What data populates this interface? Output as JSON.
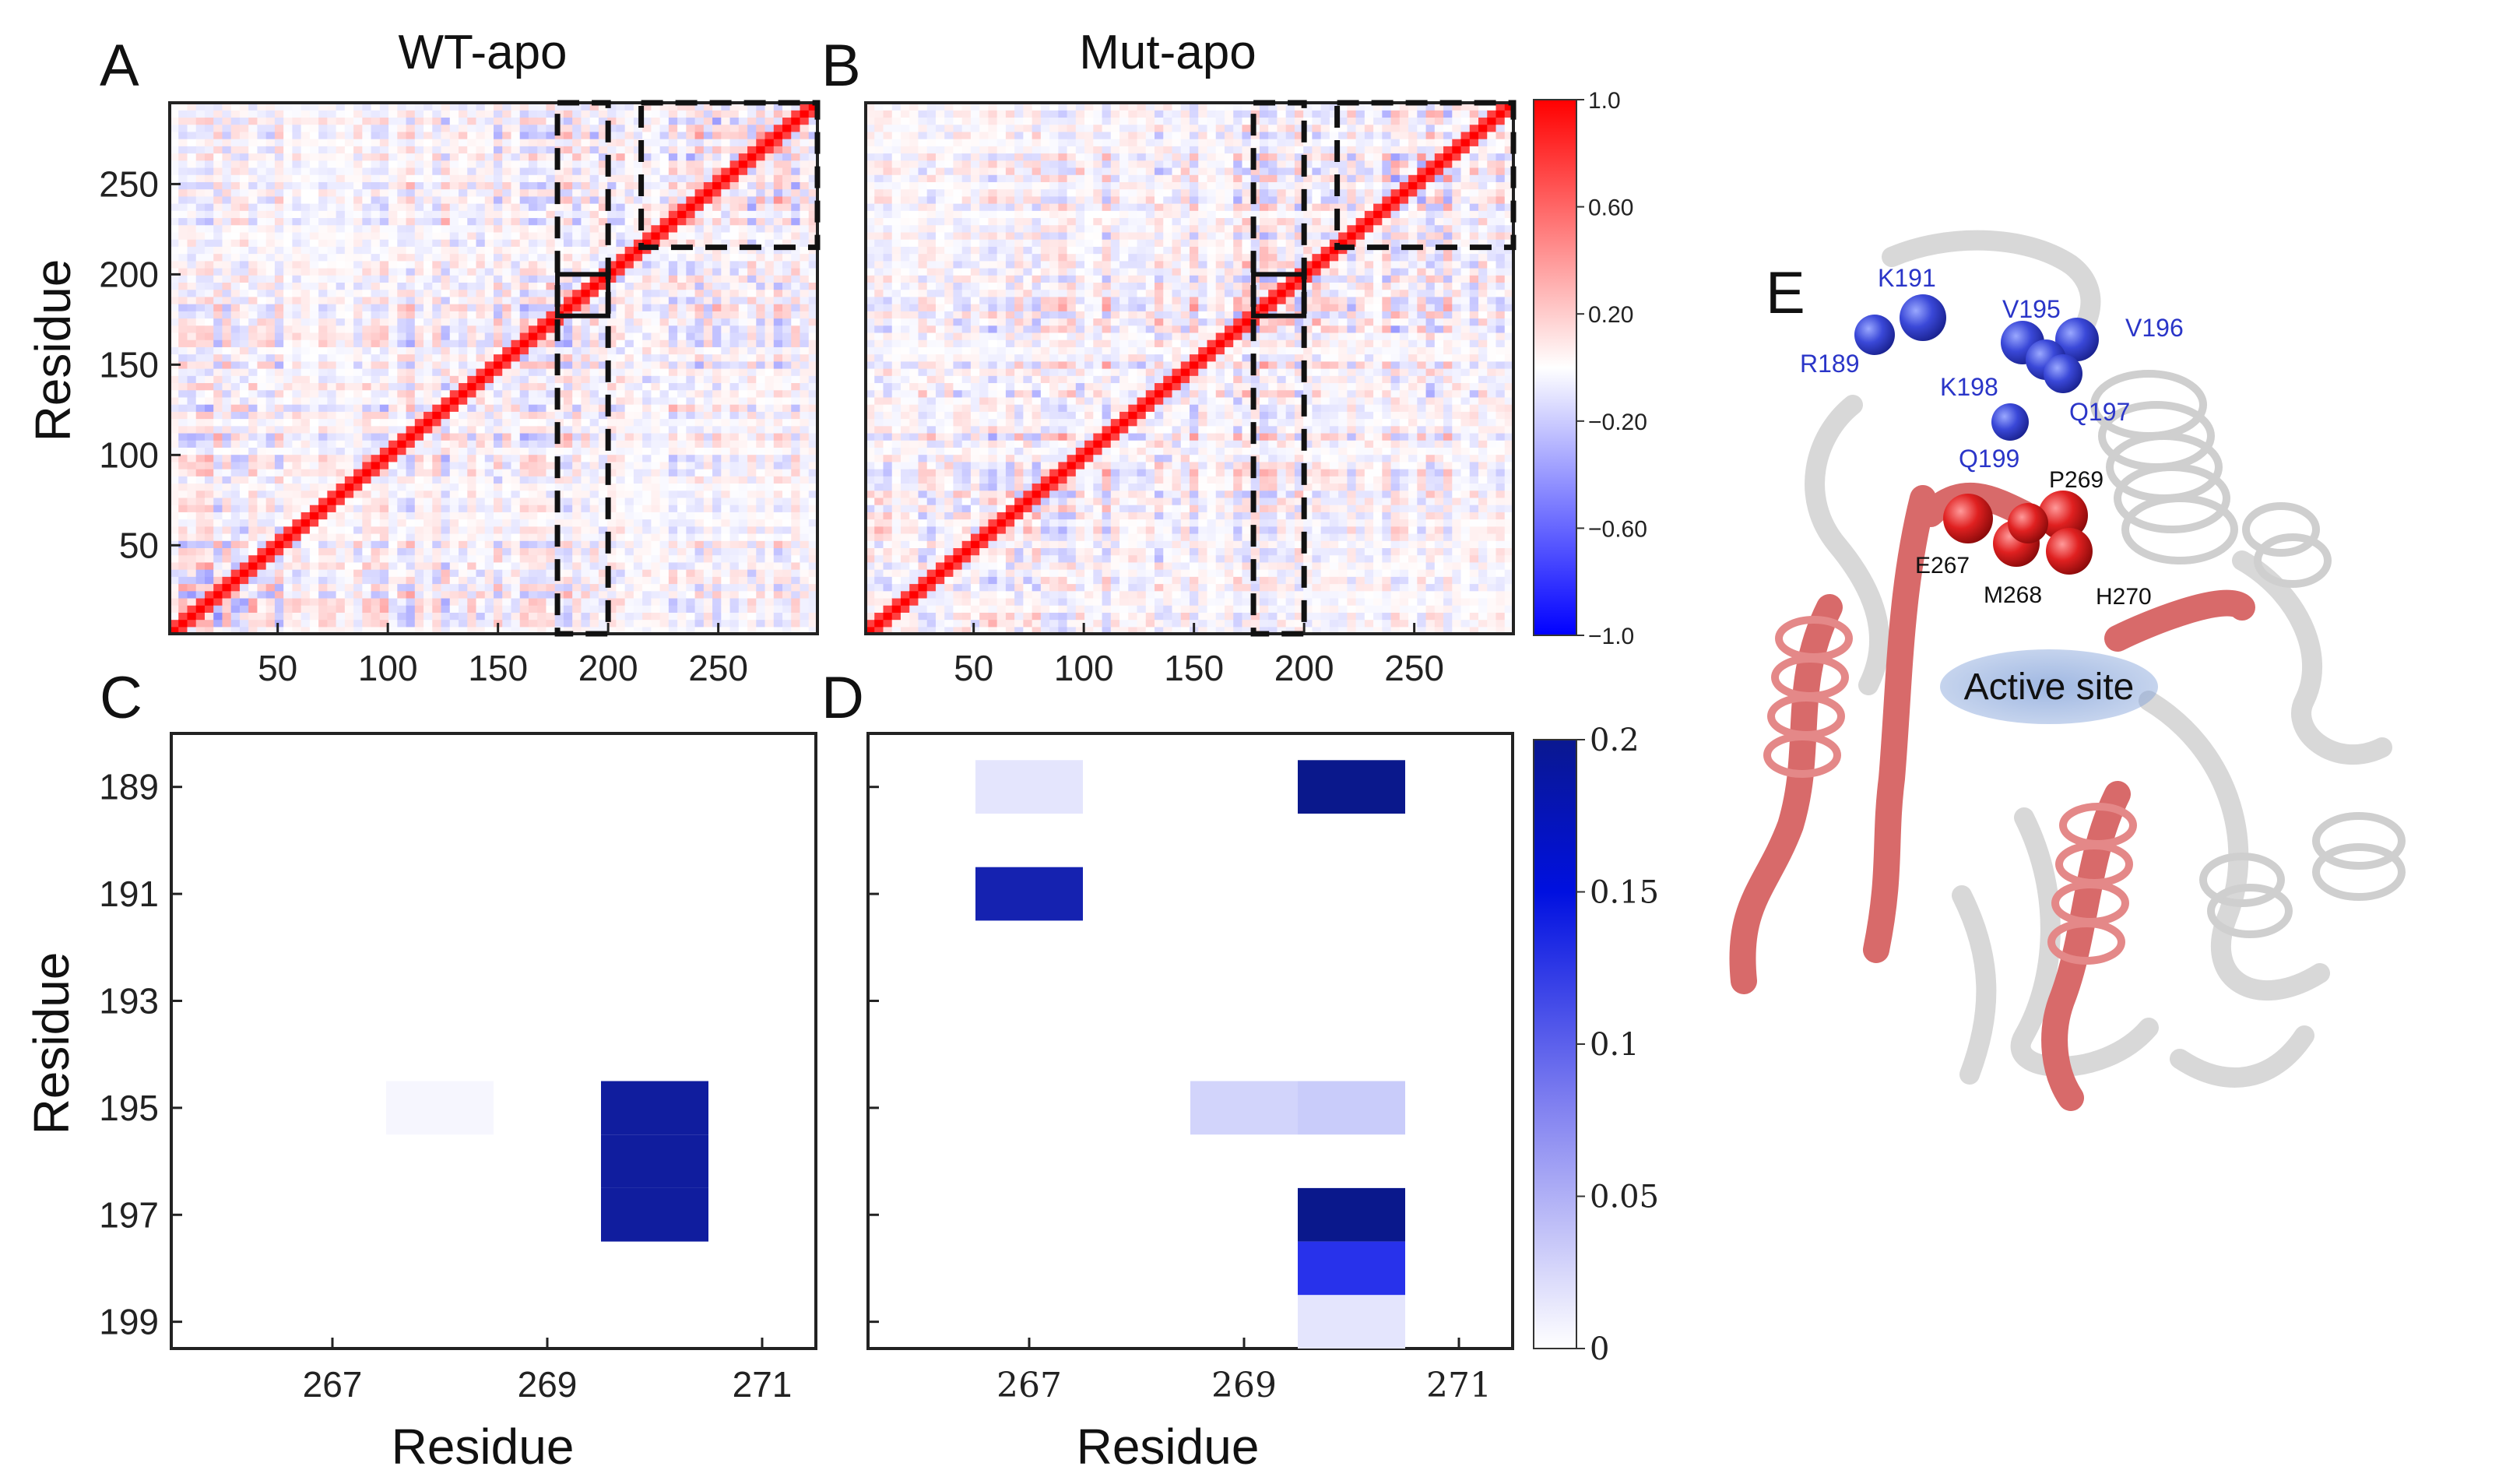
{
  "panels": {
    "A": {
      "label": "A",
      "title": "WT-apo"
    },
    "B": {
      "label": "B",
      "title": "Mut-apo"
    },
    "C": {
      "label": "C"
    },
    "D": {
      "label": "D"
    },
    "E": {
      "label": "E"
    }
  },
  "colors": {
    "positive": "#ff0000",
    "negative": "#0000ff",
    "neutral": "#ffffff",
    "heat_max": "#0a1890",
    "helix_red": "#d96a6a",
    "cartoon_grey": "#dcdcdc",
    "active_site": "#7f9fd8"
  },
  "chart_data": [
    {
      "type": "heatmap",
      "panel": "A",
      "title": "WT-apo",
      "ylabel": "Residue",
      "xlabel": "",
      "x_ticks": [
        "50",
        "100",
        "150",
        "200",
        "250"
      ],
      "y_ticks": [
        "50",
        "100",
        "150",
        "200",
        "250"
      ],
      "xlim": [
        1,
        295
      ],
      "ylim": [
        1,
        295
      ],
      "highlight_regions": [
        {
          "style": "dashed",
          "x": [
            177,
            200
          ],
          "y": [
            1,
            295
          ]
        },
        {
          "style": "dashed",
          "x": [
            215,
            295
          ],
          "y": [
            215,
            295
          ]
        },
        {
          "style": "solid",
          "x": [
            177,
            200
          ],
          "y": [
            177,
            200
          ]
        }
      ]
    },
    {
      "type": "heatmap",
      "panel": "B",
      "title": "Mut-apo",
      "ylabel": "",
      "xlabel": "",
      "x_ticks": [
        "50",
        "100",
        "150",
        "200",
        "250"
      ],
      "y_ticks": [],
      "xlim": [
        1,
        295
      ],
      "ylim": [
        1,
        295
      ],
      "highlight_regions": [
        {
          "style": "dashed",
          "x": [
            177,
            200
          ],
          "y": [
            1,
            295
          ]
        },
        {
          "style": "dashed",
          "x": [
            215,
            295
          ],
          "y": [
            215,
            295
          ]
        },
        {
          "style": "solid",
          "x": [
            177,
            200
          ],
          "y": [
            177,
            200
          ]
        }
      ]
    },
    {
      "type": "colorbar",
      "for_panels": [
        "A",
        "B"
      ],
      "range": [
        -1.0,
        1.0
      ],
      "tick_labels": [
        "1.0",
        "0.60",
        "0.20",
        "−0.20",
        "−0.60",
        "−1.0"
      ]
    },
    {
      "type": "heatmap",
      "panel": "C",
      "xlabel": "Residue",
      "ylabel": "Residue",
      "x_ticks": [
        "267",
        "269",
        "271"
      ],
      "y_ticks": [
        "189",
        "191",
        "193",
        "195",
        "197",
        "199"
      ],
      "xlim": [
        265.5,
        271.5
      ],
      "ylim": [
        188,
        199.5
      ],
      "cells": [
        {
          "x": 268,
          "y": 195,
          "value": 0.005
        },
        {
          "x": 270,
          "y": 196,
          "value": 0.185
        },
        {
          "x": 270,
          "y": 197,
          "value": 0.185
        },
        {
          "x": 270,
          "y": 195,
          "value": 0.185
        }
      ]
    },
    {
      "type": "heatmap",
      "panel": "D",
      "xlabel": "Residue",
      "ylabel": "",
      "x_ticks": [
        "267",
        "269",
        "271"
      ],
      "y_ticks": [],
      "xlim": [
        265.5,
        271.5
      ],
      "ylim": [
        188,
        199.5
      ],
      "cells": [
        {
          "x": 267,
          "y": 189,
          "value": 0.015
        },
        {
          "x": 270,
          "y": 189,
          "value": 0.2
        },
        {
          "x": 267,
          "y": 191,
          "value": 0.17
        },
        {
          "x": 269,
          "y": 195,
          "value": 0.025
        },
        {
          "x": 270,
          "y": 195,
          "value": 0.03
        },
        {
          "x": 270,
          "y": 197,
          "value": 0.2
        },
        {
          "x": 270,
          "y": 198,
          "value": 0.12
        },
        {
          "x": 270,
          "y": 199,
          "value": 0.015
        }
      ]
    },
    {
      "type": "colorbar",
      "for_panels": [
        "C",
        "D"
      ],
      "range": [
        0,
        0.2
      ],
      "tick_labels": [
        "0.2",
        "0.15",
        "0.1",
        "0.05",
        "0"
      ]
    }
  ],
  "structure": {
    "active_site_label": "Active site",
    "blue_residues": [
      {
        "name": "K191"
      },
      {
        "name": "R189"
      },
      {
        "name": "V195"
      },
      {
        "name": "V196"
      },
      {
        "name": "K198"
      },
      {
        "name": "Q197"
      },
      {
        "name": "Q199"
      }
    ],
    "red_residues": [
      {
        "name": "P269"
      },
      {
        "name": "E267"
      },
      {
        "name": "M268"
      },
      {
        "name": "H270"
      }
    ]
  }
}
